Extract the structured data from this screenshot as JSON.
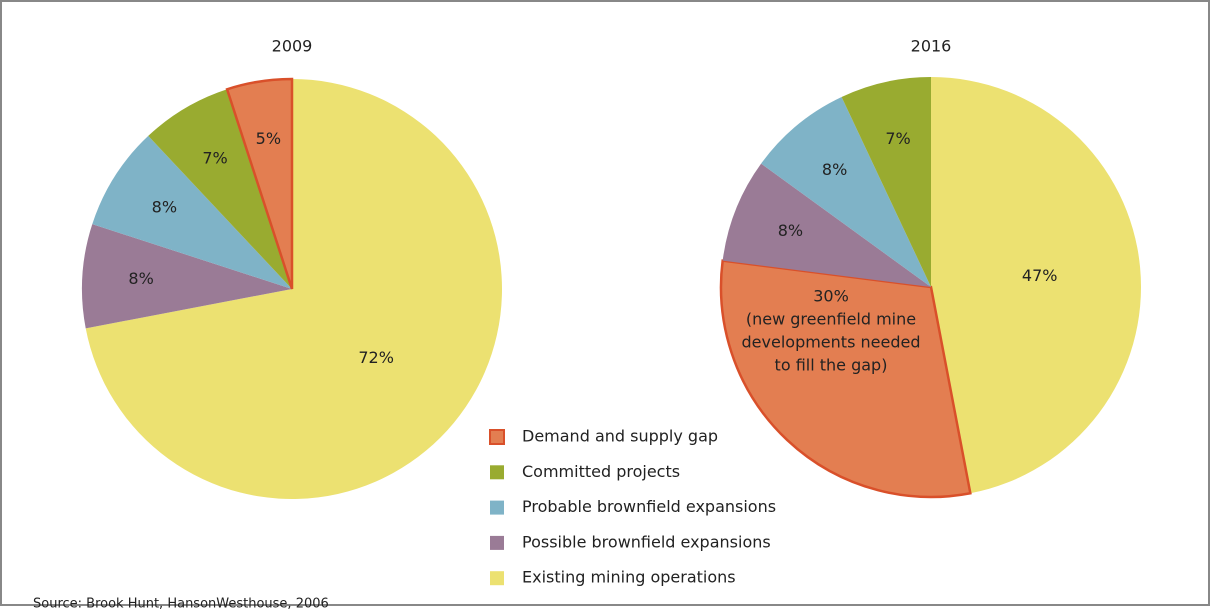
{
  "chart_data": [
    {
      "type": "pie",
      "title": "2009",
      "categories": [
        "Existing mining operations",
        "Possible brownfield expansions",
        "Probable brownfield expansions",
        "Committed projects",
        "Demand and supply gap"
      ],
      "values": [
        72,
        8,
        8,
        7,
        5
      ],
      "value_labels": [
        "72%",
        "8%",
        "8%",
        "7%",
        "5%"
      ],
      "colors": [
        "#ece171",
        "#9a7b96",
        "#7fb3c7",
        "#99ab30",
        "#e37e51"
      ]
    },
    {
      "type": "pie",
      "title": "2016",
      "categories": [
        "Existing mining operations",
        "Demand and supply gap",
        "Possible brownfield expansions",
        "Probable brownfield expansions",
        "Committed projects"
      ],
      "values": [
        47,
        30,
        8,
        8,
        7
      ],
      "value_labels": [
        "47%",
        "30%",
        "8%",
        "8%",
        "7%"
      ],
      "colors": [
        "#ece171",
        "#e37e51",
        "#9a7b96",
        "#7fb3c7",
        "#99ab30"
      ],
      "annotation": [
        "(new greenfield mine",
        "developments needed",
        "to fill the gap)"
      ]
    }
  ],
  "source": "Source: Brook Hunt, HansonWesthouse, 2006"
}
